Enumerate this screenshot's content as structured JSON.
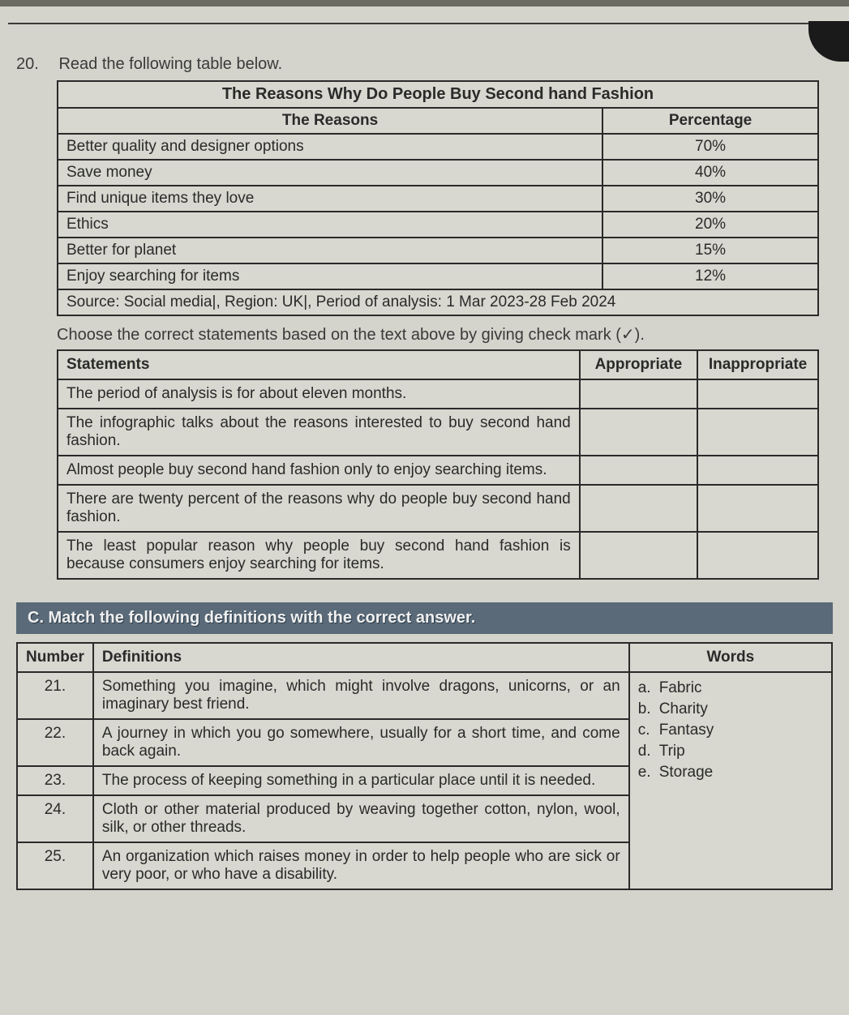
{
  "q20": {
    "number": "20.",
    "prompt": "Read the following table below.",
    "table": {
      "title": "The Reasons Why Do People Buy Second hand Fashion",
      "col1": "The Reasons",
      "col2": "Percentage",
      "rows": [
        {
          "reason": "Better quality and designer options",
          "pct": "70%"
        },
        {
          "reason": "Save money",
          "pct": "40%"
        },
        {
          "reason": "Find unique items they love",
          "pct": "30%"
        },
        {
          "reason": "Ethics",
          "pct": "20%"
        },
        {
          "reason": "Better for planet",
          "pct": "15%"
        },
        {
          "reason": "Enjoy searching for items",
          "pct": "12%"
        }
      ],
      "source": "Source: Social media|, Region: UK|, Period of analysis: 1 Mar 2023-28 Feb 2024"
    },
    "instruction": "Choose the correct statements based on the text above by giving check mark (✓).",
    "stmt_table": {
      "h1": "Statements",
      "h2": "Appropriate",
      "h3": "Inappropriate",
      "rows": [
        "The period of analysis is for about eleven months.",
        "The infographic talks about the reasons interested to buy second hand fashion.",
        "Almost people buy second hand fashion only to enjoy searching items.",
        "There are twenty percent of the reasons why do people buy second hand fashion.",
        "The least popular reason why people buy second hand fashion is because consumers enjoy searching for items."
      ]
    }
  },
  "sectionC": {
    "label": "C.   Match the following definitions with the correct answer.",
    "headers": {
      "num": "Number",
      "def": "Definitions",
      "words": "Words"
    },
    "rows": [
      {
        "num": "21.",
        "def": "Something you imagine, which might involve dragons, unicorns, or an imaginary best friend."
      },
      {
        "num": "22.",
        "def": "A journey in which you go somewhere, usually for a short time, and come back again."
      },
      {
        "num": "23.",
        "def": "The process of keeping something in a particular place until it is needed."
      },
      {
        "num": "24.",
        "def": "Cloth or other material produced by weaving together cotton, nylon, wool, silk, or other threads."
      },
      {
        "num": "25.",
        "def": "An organization which raises money in order to help people who are sick or very poor, or who have a disability."
      }
    ],
    "words": [
      {
        "letter": "a.",
        "word": "Fabric"
      },
      {
        "letter": "b.",
        "word": "Charity"
      },
      {
        "letter": "c.",
        "word": "Fantasy"
      },
      {
        "letter": "d.",
        "word": "Trip"
      },
      {
        "letter": "e.",
        "word": "Storage"
      }
    ]
  },
  "colors": {
    "page_bg": "#d4d4cc",
    "border": "#2a2a2a",
    "section_bar_bg": "#5a6a78",
    "section_bar_text": "#f0f0f0"
  }
}
